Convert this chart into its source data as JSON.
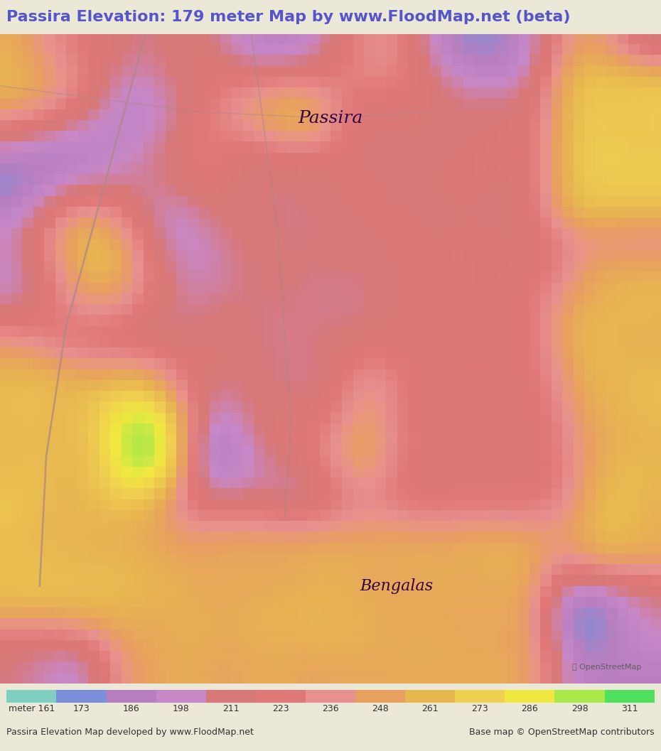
{
  "title": "Passira Elevation: 179 meter Map by www.FloodMap.net (beta)",
  "title_color": "#5555cc",
  "title_bg": "#e8e8d8",
  "map_label_passira": "Passira",
  "map_label_bengalas": "Bengalas",
  "label_color": "#330044",
  "colorbar_min": 161,
  "colorbar_max": 311,
  "colorbar_ticks": [
    161,
    173,
    186,
    198,
    211,
    223,
    236,
    248,
    261,
    273,
    286,
    298,
    311
  ],
  "colorbar_colors": [
    "#7ecfbf",
    "#7b8fdd",
    "#b87fc0",
    "#c888c8",
    "#d87878",
    "#e07878",
    "#e89090",
    "#e8a060",
    "#e8b850",
    "#f0d050",
    "#f0e840",
    "#a8e848",
    "#50e060"
  ],
  "footer_left": "Passira Elevation Map developed by www.FloodMap.net",
  "footer_right": "Base map © OpenStreetMap contributors",
  "bg_color": "#ece8d8",
  "map_bg": "#c8a0cc",
  "seed": 42,
  "grid_size": 60
}
